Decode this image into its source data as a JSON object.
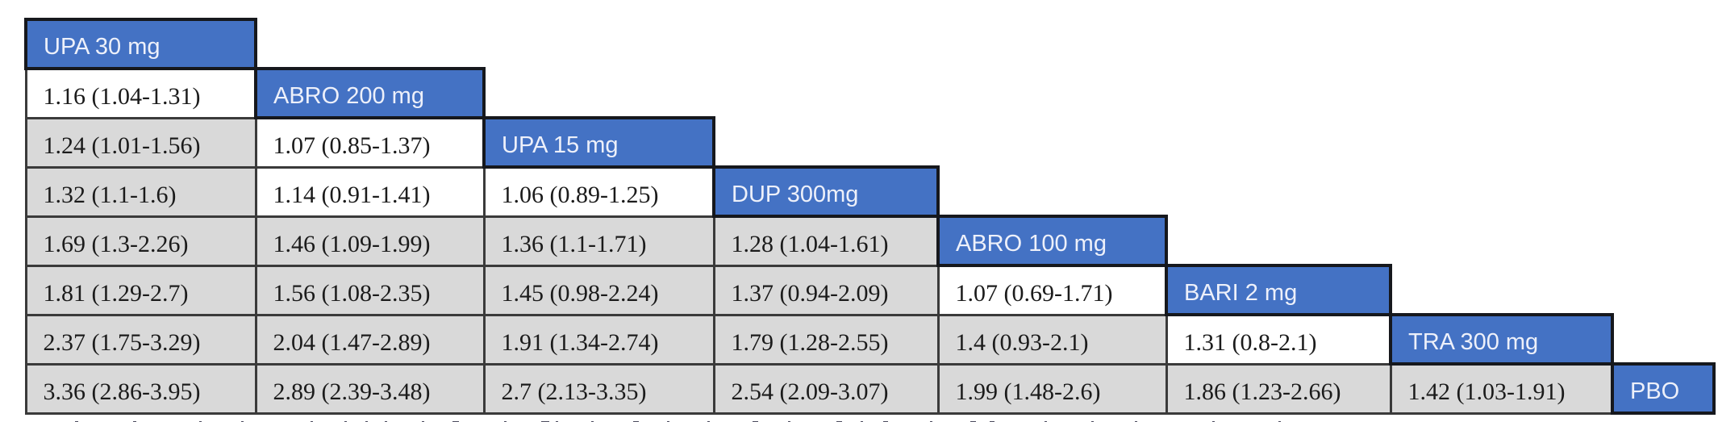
{
  "chart_data": {
    "type": "table",
    "subtype": "lower-triangle league table of pairwise treatment comparisons, estimate (interval)",
    "diagonal_treatments": [
      "UPA 30 mg",
      "ABRO 200 mg",
      "UPA 15 mg",
      "DUP 300mg",
      "ABRO 100 mg",
      "BARI 2 mg",
      "TRA 300 mg",
      "PBO"
    ],
    "rows": [
      {
        "diagonal": "UPA 30 mg",
        "values": []
      },
      {
        "diagonal": "ABRO 200 mg",
        "values": [
          "1.16 (1.04-1.31)"
        ]
      },
      {
        "diagonal": "UPA 15 mg",
        "values": [
          "1.24 (1.01-1.56)",
          "1.07 (0.85-1.37)"
        ]
      },
      {
        "diagonal": "DUP 300mg",
        "values": [
          "1.32 (1.1-1.6)",
          "1.14 (0.91-1.41)",
          "1.06 (0.89-1.25)"
        ]
      },
      {
        "diagonal": "ABRO 100 mg",
        "values": [
          "1.69 (1.3-2.26)",
          "1.46 (1.09-1.99)",
          "1.36 (1.1-1.71)",
          "1.28 (1.04-1.61)"
        ]
      },
      {
        "diagonal": "BARI 2 mg",
        "values": [
          "1.81 (1.29-2.7)",
          "1.56 (1.08-2.35)",
          "1.45 (0.98-2.24)",
          "1.37 (0.94-2.09)",
          "1.07 (0.69-1.71)"
        ]
      },
      {
        "diagonal": "TRA 300 mg",
        "values": [
          "2.37 (1.75-3.29)",
          "2.04 (1.47-2.89)",
          "1.91 (1.34-2.74)",
          "1.79 (1.28-2.55)",
          "1.4 (0.93-2.1)",
          "1.31 (0.8-2.1)"
        ]
      },
      {
        "diagonal": "PBO",
        "values": [
          "3.36 (2.86-3.95)",
          "2.89 (2.39-3.48)",
          "2.7 (2.13-3.35)",
          "2.54 (2.09-3.07)",
          "1.99 (1.48-2.6)",
          "1.86 (1.23-2.66)",
          "1.42 (1.03-1.91)"
        ]
      }
    ],
    "white_background_cells": [
      [
        1,
        0
      ],
      [
        2,
        1
      ],
      [
        3,
        1
      ],
      [
        3,
        2
      ],
      [
        5,
        4
      ],
      [
        6,
        5
      ]
    ],
    "colors": {
      "header_bg": "#4472c4",
      "header_border": "#16181d",
      "header_text": "#edf0fa",
      "cell_bg_shaded": "#d9d9d9",
      "cell_bg_unshaded": "#ffffff",
      "cell_border": "#3a3a3a",
      "cell_text": "#1b1b1b"
    }
  }
}
